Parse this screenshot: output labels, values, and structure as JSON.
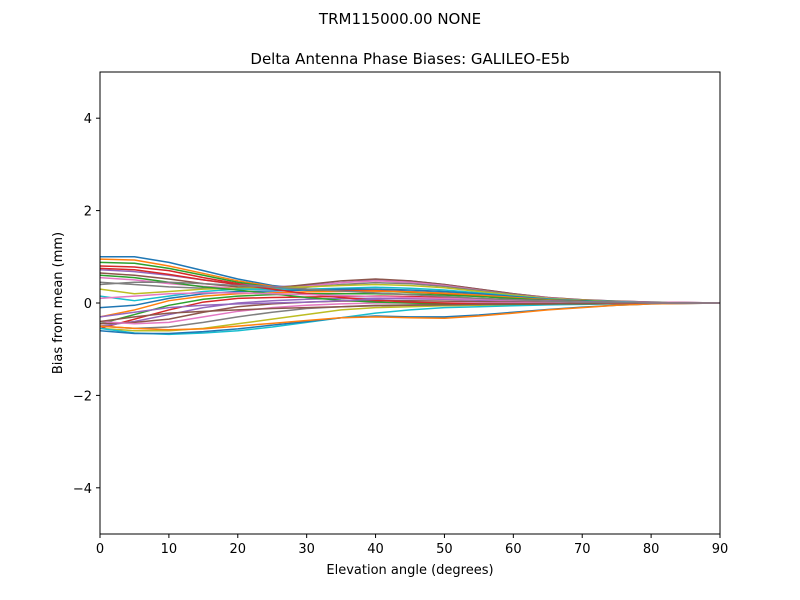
{
  "chart_data": {
    "type": "line",
    "suptitle": "TRM115000.00    NONE",
    "title": "Delta Antenna Phase Biases: GALILEO-E5b",
    "xlabel": "Elevation angle (degrees)",
    "ylabel": "Bias from mean (mm)",
    "xlim": [
      0,
      90
    ],
    "ylim": [
      -5,
      5
    ],
    "x_ticks": [
      0,
      10,
      20,
      30,
      40,
      50,
      60,
      70,
      80,
      90
    ],
    "y_ticks": [
      -4,
      -2,
      0,
      2,
      4
    ],
    "x_tick_labels": [
      "0",
      "10",
      "20",
      "30",
      "40",
      "50",
      "60",
      "70",
      "80",
      "90"
    ],
    "y_tick_labels": [
      "−4",
      "−2",
      "0",
      "2",
      "4"
    ],
    "grid": false,
    "legend": "none",
    "x": [
      0,
      5,
      10,
      15,
      20,
      25,
      30,
      35,
      40,
      45,
      50,
      55,
      60,
      65,
      70,
      75,
      80,
      85,
      90
    ],
    "series": [
      {
        "values": [
          1.0,
          1.0,
          0.88,
          0.7,
          0.52,
          0.38,
          0.3,
          0.28,
          0.27,
          0.25,
          0.22,
          0.17,
          0.12,
          0.08,
          0.05,
          0.03,
          0.01,
          0.0,
          0.0
        ]
      },
      {
        "values": [
          0.95,
          0.93,
          0.8,
          0.64,
          0.48,
          0.36,
          0.3,
          0.28,
          0.26,
          0.24,
          0.21,
          0.16,
          0.11,
          0.07,
          0.04,
          0.02,
          0.01,
          0.0,
          0.0
        ]
      },
      {
        "values": [
          0.88,
          0.86,
          0.75,
          0.6,
          0.45,
          0.34,
          0.28,
          0.27,
          0.26,
          0.23,
          0.2,
          0.15,
          0.1,
          0.07,
          0.04,
          0.02,
          0.01,
          0.0,
          0.0
        ]
      },
      {
        "values": [
          0.8,
          0.78,
          0.7,
          0.55,
          0.42,
          0.32,
          0.28,
          0.28,
          0.27,
          0.24,
          0.2,
          0.15,
          0.1,
          0.06,
          0.04,
          0.02,
          0.01,
          0.0,
          0.0
        ]
      },
      {
        "values": [
          0.72,
          0.68,
          0.6,
          0.5,
          0.4,
          0.35,
          0.38,
          0.44,
          0.5,
          0.48,
          0.4,
          0.3,
          0.2,
          0.12,
          0.07,
          0.04,
          0.02,
          0.01,
          0.0
        ]
      },
      {
        "values": [
          0.65,
          0.6,
          0.52,
          0.42,
          0.35,
          0.32,
          0.4,
          0.48,
          0.52,
          0.48,
          0.4,
          0.3,
          0.2,
          0.12,
          0.07,
          0.04,
          0.02,
          0.01,
          0.0
        ]
      },
      {
        "values": [
          0.55,
          0.5,
          0.42,
          0.36,
          0.32,
          0.3,
          0.36,
          0.44,
          0.48,
          0.45,
          0.38,
          0.28,
          0.18,
          0.11,
          0.06,
          0.03,
          0.02,
          0.01,
          0.0
        ]
      },
      {
        "values": [
          0.45,
          0.4,
          0.35,
          0.32,
          0.3,
          0.3,
          0.34,
          0.4,
          0.44,
          0.42,
          0.36,
          0.27,
          0.18,
          0.1,
          0.06,
          0.03,
          0.01,
          0.0,
          0.0
        ]
      },
      {
        "values": [
          0.3,
          0.2,
          0.25,
          0.3,
          0.32,
          0.33,
          0.35,
          0.38,
          0.4,
          0.38,
          0.33,
          0.25,
          0.17,
          0.1,
          0.06,
          0.03,
          0.01,
          0.0,
          0.0
        ]
      },
      {
        "values": [
          0.15,
          0.05,
          0.15,
          0.25,
          0.3,
          0.3,
          0.3,
          0.32,
          0.34,
          0.32,
          0.28,
          0.22,
          0.15,
          0.09,
          0.05,
          0.03,
          0.01,
          0.0,
          0.0
        ]
      },
      {
        "values": [
          -0.1,
          -0.05,
          0.1,
          0.2,
          0.25,
          0.26,
          0.28,
          0.3,
          0.3,
          0.28,
          0.25,
          0.2,
          0.14,
          0.08,
          0.05,
          0.02,
          0.01,
          0.0,
          0.0
        ]
      },
      {
        "values": [
          -0.3,
          -0.15,
          0.05,
          0.15,
          0.2,
          0.22,
          0.24,
          0.25,
          0.26,
          0.24,
          0.21,
          0.17,
          0.12,
          0.07,
          0.04,
          0.02,
          0.01,
          0.0,
          0.0
        ]
      },
      {
        "values": [
          -0.45,
          -0.25,
          -0.05,
          0.08,
          0.15,
          0.18,
          0.2,
          0.2,
          0.2,
          0.19,
          0.17,
          0.14,
          0.1,
          0.06,
          0.04,
          0.02,
          0.01,
          0.0,
          0.0
        ]
      },
      {
        "values": [
          -0.55,
          -0.35,
          -0.15,
          0.02,
          0.1,
          0.12,
          0.13,
          0.14,
          0.15,
          0.14,
          0.12,
          0.1,
          0.07,
          0.05,
          0.03,
          0.01,
          0.0,
          0.0,
          0.0
        ]
      },
      {
        "values": [
          -0.5,
          -0.4,
          -0.25,
          -0.1,
          0.0,
          0.05,
          0.08,
          0.1,
          0.1,
          0.09,
          0.08,
          0.06,
          0.05,
          0.03,
          0.02,
          0.01,
          0.0,
          0.0,
          0.0
        ]
      },
      {
        "values": [
          -0.45,
          -0.42,
          -0.35,
          -0.2,
          -0.08,
          -0.02,
          0.02,
          0.04,
          0.05,
          0.05,
          0.04,
          0.03,
          0.02,
          0.02,
          0.01,
          0.0,
          0.0,
          0.0,
          0.0
        ]
      },
      {
        "values": [
          -0.4,
          -0.45,
          -0.42,
          -0.3,
          -0.18,
          -0.1,
          -0.05,
          -0.02,
          0.0,
          0.0,
          0.0,
          0.0,
          0.0,
          0.0,
          0.0,
          0.0,
          0.0,
          0.0,
          0.0
        ]
      },
      {
        "values": [
          -0.5,
          -0.55,
          -0.52,
          -0.42,
          -0.3,
          -0.2,
          -0.12,
          -0.08,
          -0.05,
          -0.04,
          -0.03,
          -0.02,
          -0.02,
          -0.01,
          -0.01,
          0.0,
          0.0,
          0.0,
          0.0
        ]
      },
      {
        "values": [
          -0.55,
          -0.6,
          -0.6,
          -0.55,
          -0.45,
          -0.35,
          -0.25,
          -0.15,
          -0.1,
          -0.08,
          -0.06,
          -0.05,
          -0.04,
          -0.03,
          -0.02,
          -0.01,
          0.0,
          0.0,
          0.0
        ]
      },
      {
        "values": [
          -0.55,
          -0.65,
          -0.68,
          -0.65,
          -0.6,
          -0.52,
          -0.42,
          -0.32,
          -0.22,
          -0.15,
          -0.1,
          -0.08,
          -0.06,
          -0.04,
          -0.03,
          -0.02,
          -0.01,
          0.0,
          0.0
        ]
      },
      {
        "values": [
          -0.6,
          -0.66,
          -0.66,
          -0.62,
          -0.56,
          -0.48,
          -0.4,
          -0.32,
          -0.28,
          -0.3,
          -0.3,
          -0.26,
          -0.2,
          -0.14,
          -0.09,
          -0.05,
          -0.02,
          -0.01,
          0.0
        ]
      },
      {
        "values": [
          -0.5,
          -0.55,
          -0.58,
          -0.56,
          -0.5,
          -0.44,
          -0.38,
          -0.32,
          -0.3,
          -0.32,
          -0.33,
          -0.28,
          -0.22,
          -0.15,
          -0.1,
          -0.05,
          -0.02,
          -0.01,
          0.0
        ]
      },
      {
        "values": [
          0.6,
          0.55,
          0.45,
          0.35,
          0.28,
          0.2,
          0.12,
          0.06,
          0.02,
          0.0,
          -0.02,
          -0.03,
          -0.03,
          -0.02,
          -0.02,
          -0.01,
          0.0,
          0.0,
          0.0
        ]
      },
      {
        "values": [
          0.75,
          0.72,
          0.62,
          0.5,
          0.4,
          0.3,
          0.2,
          0.12,
          0.06,
          0.02,
          0.0,
          -0.02,
          -0.02,
          -0.02,
          -0.01,
          -0.01,
          0.0,
          0.0,
          0.0
        ]
      },
      {
        "values": [
          -0.3,
          -0.2,
          -0.1,
          -0.05,
          -0.02,
          0.0,
          0.02,
          0.05,
          0.08,
          0.1,
          0.1,
          0.09,
          0.07,
          0.05,
          0.03,
          0.02,
          0.01,
          0.0,
          0.0
        ]
      },
      {
        "values": [
          -0.4,
          -0.3,
          -0.22,
          -0.18,
          -0.15,
          -0.12,
          -0.1,
          -0.08,
          -0.06,
          -0.05,
          -0.04,
          -0.03,
          -0.02,
          -0.02,
          -0.01,
          0.0,
          0.0,
          0.0,
          0.0
        ]
      },
      {
        "values": [
          0.1,
          0.15,
          0.2,
          0.22,
          0.22,
          0.2,
          0.18,
          0.16,
          0.14,
          0.12,
          0.1,
          0.08,
          0.06,
          0.04,
          0.02,
          0.01,
          0.0,
          0.0,
          0.0
        ]
      },
      {
        "values": [
          0.4,
          0.45,
          0.45,
          0.42,
          0.38,
          0.34,
          0.3,
          0.26,
          0.22,
          0.18,
          0.14,
          0.1,
          0.07,
          0.04,
          0.02,
          0.01,
          0.0,
          0.0,
          0.0
        ]
      }
    ],
    "colors": [
      "#1f77b4",
      "#ff7f0e",
      "#2ca02c",
      "#d62728",
      "#9467bd",
      "#8c564b",
      "#e377c2",
      "#7f7f7f",
      "#bcbd22",
      "#17becf"
    ]
  }
}
